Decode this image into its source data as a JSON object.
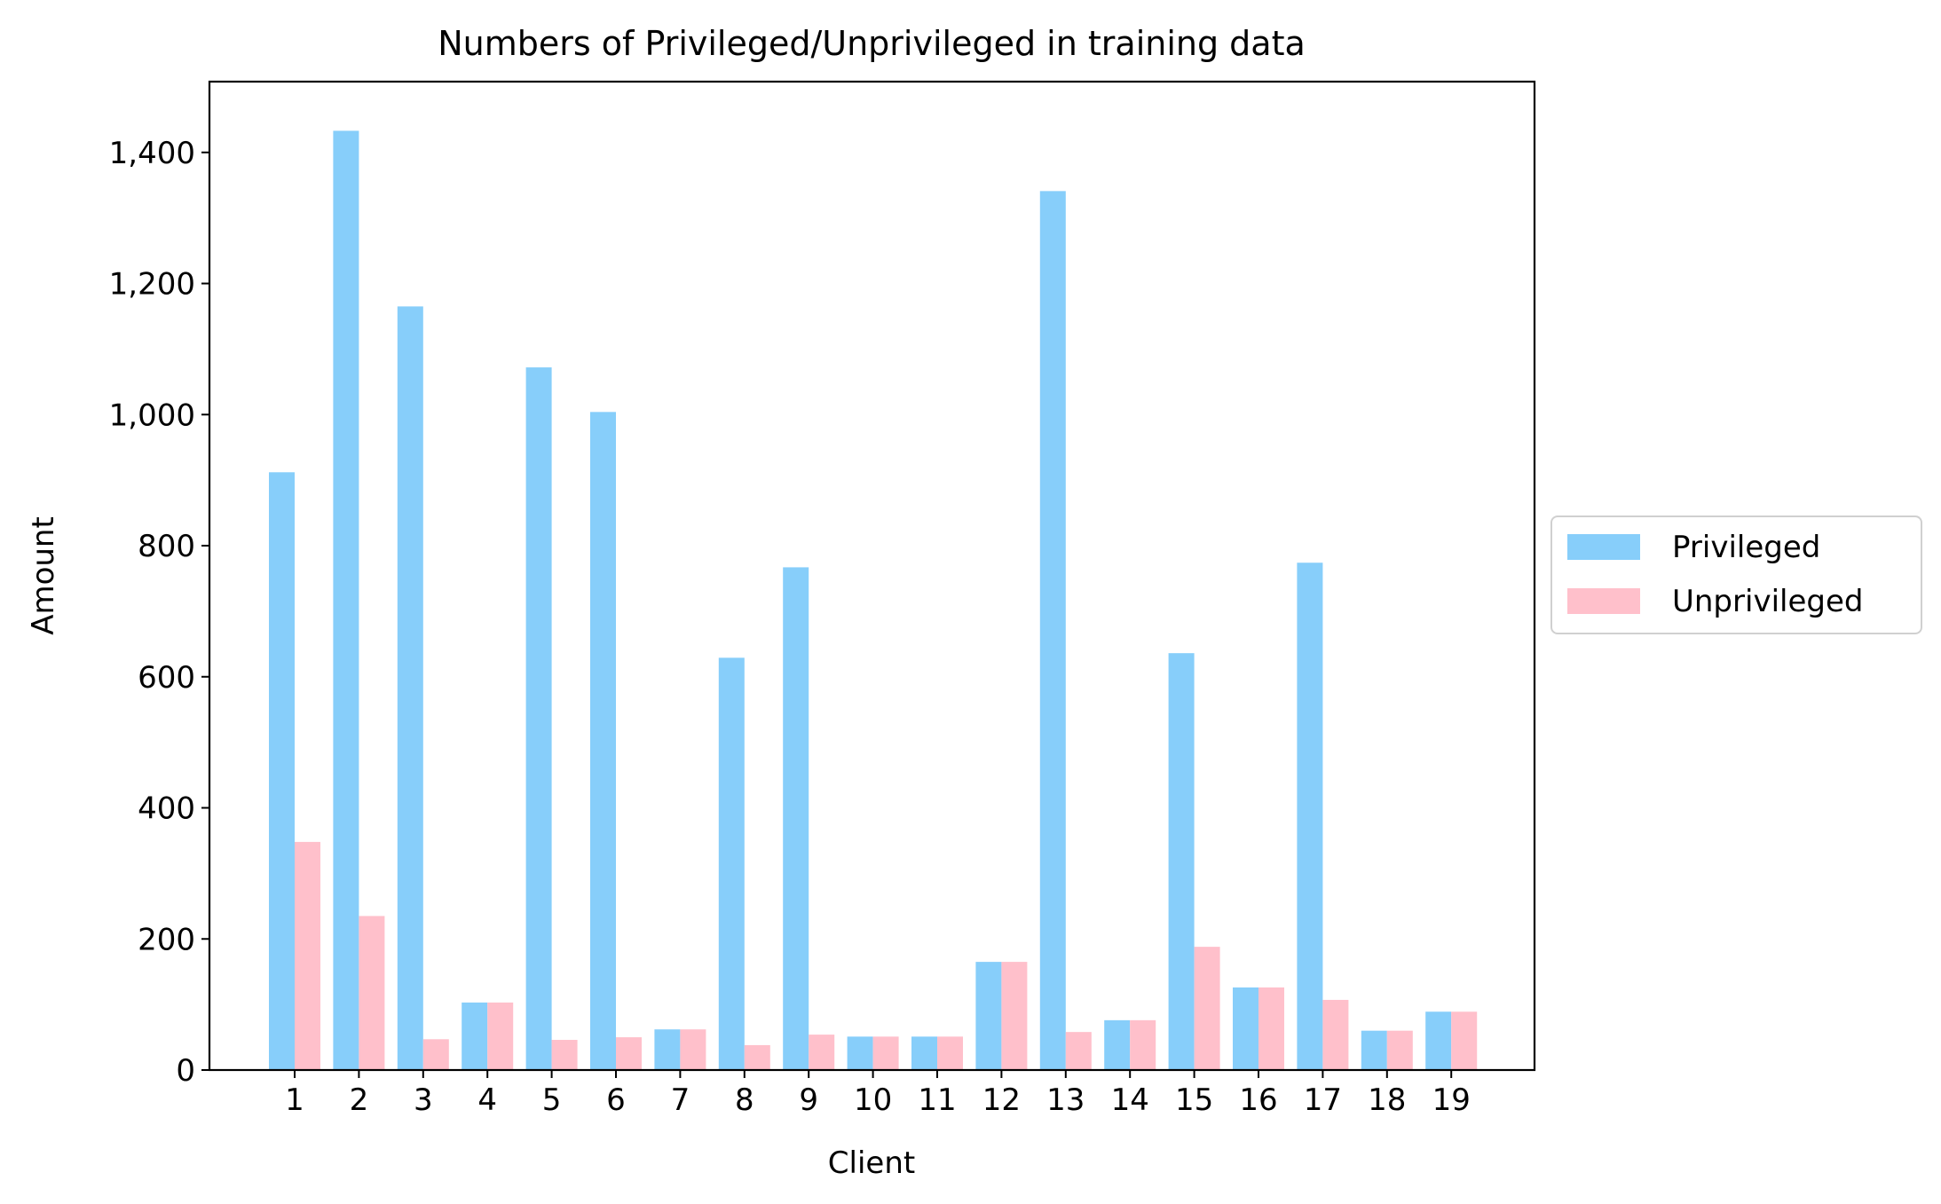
{
  "chart_data": {
    "type": "bar",
    "title": "Numbers of Privileged/Unprivileged in training data",
    "xlabel": "Client",
    "ylabel": "Amount",
    "categories": [
      "1",
      "2",
      "3",
      "4",
      "5",
      "6",
      "7",
      "8",
      "9",
      "10",
      "11",
      "12",
      "13",
      "14",
      "15",
      "16",
      "17",
      "18",
      "19"
    ],
    "series": [
      {
        "name": "Privileged",
        "color": "#87CEFA",
        "values": [
          912,
          1433,
          1165,
          103,
          1072,
          1004,
          62,
          629,
          767,
          51,
          51,
          165,
          1341,
          76,
          636,
          126,
          774,
          60,
          89
        ]
      },
      {
        "name": "Unprivileged",
        "color": "#FFC0CB",
        "values": [
          348,
          235,
          47,
          103,
          46,
          50,
          62,
          38,
          54,
          51,
          51,
          165,
          58,
          76,
          188,
          126,
          107,
          60,
          89
        ]
      }
    ],
    "ylim": [
      0,
      1508
    ],
    "yticks": [
      0,
      200,
      400,
      600,
      800,
      1000,
      1200,
      1400
    ],
    "ytick_labels": [
      "0",
      "200",
      "400",
      "600",
      "800",
      "1,000",
      "1,200",
      "1,400"
    ],
    "grid": false,
    "legend": "center-right"
  }
}
